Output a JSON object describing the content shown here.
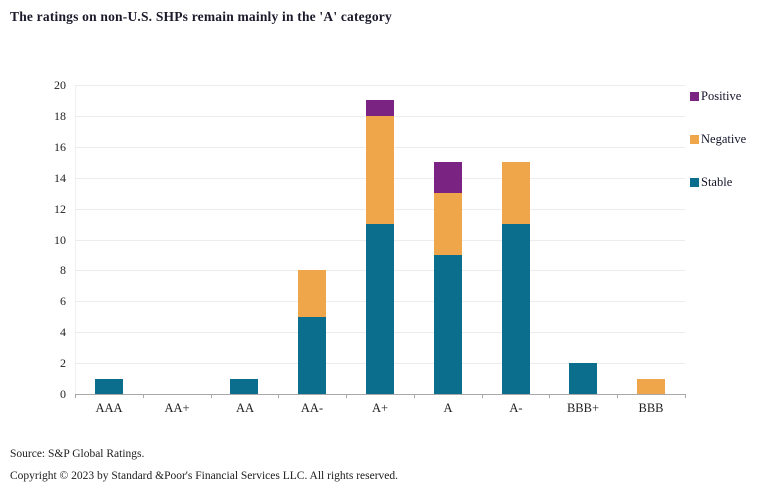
{
  "title": "The ratings on non-U.S. SHPs remain mainly in the 'A' category",
  "chart_data": {
    "type": "bar",
    "stacked": true,
    "title": "The ratings on non-U.S. SHPs remain mainly in the 'A' category",
    "categories": [
      "AAA",
      "AA+",
      "AA",
      "AA-",
      "A+",
      "A",
      "A-",
      "BBB+",
      "BBB"
    ],
    "series": [
      {
        "name": "Stable",
        "color": "#0c6e8d",
        "values": [
          1,
          0,
          1,
          5,
          11,
          9,
          11,
          2,
          0
        ]
      },
      {
        "name": "Negative",
        "color": "#efa54a",
        "values": [
          0,
          0,
          0,
          3,
          7,
          4,
          4,
          0,
          1
        ]
      },
      {
        "name": "Positive",
        "color": "#7b2382",
        "values": [
          0,
          0,
          0,
          0,
          1,
          2,
          0,
          0,
          0
        ]
      }
    ],
    "totals": [
      1,
      0,
      1,
      8,
      19,
      15,
      15,
      2,
      1
    ],
    "xlabel": "",
    "ylabel": "",
    "ylim": [
      0,
      20
    ],
    "ytick_step": 2,
    "grid": true,
    "legend_position": "right"
  },
  "legend": {
    "items": [
      {
        "label": "Positive",
        "color": "#7b2382"
      },
      {
        "label": "Negative",
        "color": "#efa54a"
      },
      {
        "label": "Stable",
        "color": "#0c6e8d"
      }
    ]
  },
  "footer": {
    "source": "Source: S&P Global Ratings.",
    "copyright": "Copyright © 2023 by Standard &Poor's Financial Services LLC. All rights reserved."
  },
  "colors": {
    "stable": "#0c6e8d",
    "negative": "#efa54a",
    "positive": "#7b2382",
    "gridline": "#ececec",
    "axis": "#a8a8a8",
    "title_text": "#1a1a2b"
  }
}
